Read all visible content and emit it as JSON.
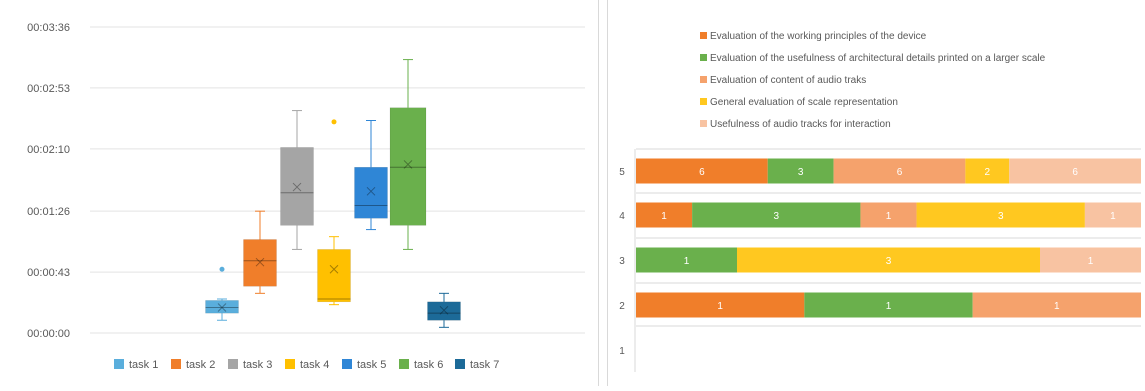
{
  "chart_data": [
    {
      "type": "box",
      "title": "",
      "xlabel": "",
      "ylabel": "",
      "y_unit": "seconds",
      "ylim": [
        0,
        216
      ],
      "y_tick_labels": [
        "00:00:00",
        "00:00:43",
        "00:01:26",
        "00:02:10",
        "00:02:53",
        "00:03:36"
      ],
      "y_tick_values": [
        0,
        43,
        86,
        130,
        173,
        216
      ],
      "grid": true,
      "legend_position": "bottom",
      "series": [
        {
          "name": "task 1",
          "color": "#5aaedc",
          "min": 9,
          "q1": 14,
          "median": 18,
          "q3": 23,
          "max": 24,
          "mean": 18,
          "outliers": [
            45
          ]
        },
        {
          "name": "task 2",
          "color": "#f07e2a",
          "min": 28,
          "q1": 33,
          "median": 51,
          "q3": 66,
          "max": 86,
          "mean": 50,
          "outliers": []
        },
        {
          "name": "task 3",
          "color": "#a5a5a5",
          "min": 59,
          "q1": 76,
          "median": 99,
          "q3": 131,
          "max": 157,
          "mean": 103,
          "outliers": []
        },
        {
          "name": "task 4",
          "color": "#ffc000",
          "min": 20,
          "q1": 22,
          "median": 24,
          "q3": 59,
          "max": 68,
          "mean": 45,
          "outliers": [
            149
          ]
        },
        {
          "name": "task 5",
          "color": "#2f86d6",
          "min": 73,
          "q1": 81,
          "median": 90,
          "q3": 117,
          "max": 150,
          "mean": 100,
          "outliers": []
        },
        {
          "name": "task 6",
          "color": "#6ab04c",
          "min": 59,
          "q1": 76,
          "median": 117,
          "q3": 159,
          "max": 193,
          "mean": 119,
          "outliers": []
        },
        {
          "name": "task 7",
          "color": "#1c6a98",
          "min": 4,
          "q1": 9,
          "median": 14,
          "q3": 22,
          "max": 28,
          "mean": 16,
          "outliers": []
        }
      ]
    },
    {
      "type": "bar",
      "orientation": "horizontal",
      "stacked": true,
      "title": "",
      "xlabel": "",
      "ylabel": "",
      "categories": [
        "5",
        "4",
        "3",
        "2",
        "1"
      ],
      "legend_position": "top",
      "series": [
        {
          "name": "Evaluation of the working principles of the device",
          "color": "#f07e2a",
          "values": [
            6,
            1,
            0,
            1,
            0
          ]
        },
        {
          "name": "Evaluation of the usefulness of architectural details printed on a larger scale",
          "color": "#6ab04c",
          "values": [
            3,
            3,
            1,
            1,
            0
          ]
        },
        {
          "name": "Evaluation of content of audio traks",
          "color": "#f5a26c",
          "values": [
            6,
            1,
            0,
            1,
            0
          ]
        },
        {
          "name": "General evaluation of scale representation",
          "color": "#ffc820",
          "values": [
            2,
            3,
            3,
            0,
            0
          ]
        },
        {
          "name": "Usefulness of audio tracks for interaction",
          "color": "#f8c3a2",
          "values": [
            6,
            1,
            1,
            0,
            0
          ]
        }
      ]
    }
  ]
}
